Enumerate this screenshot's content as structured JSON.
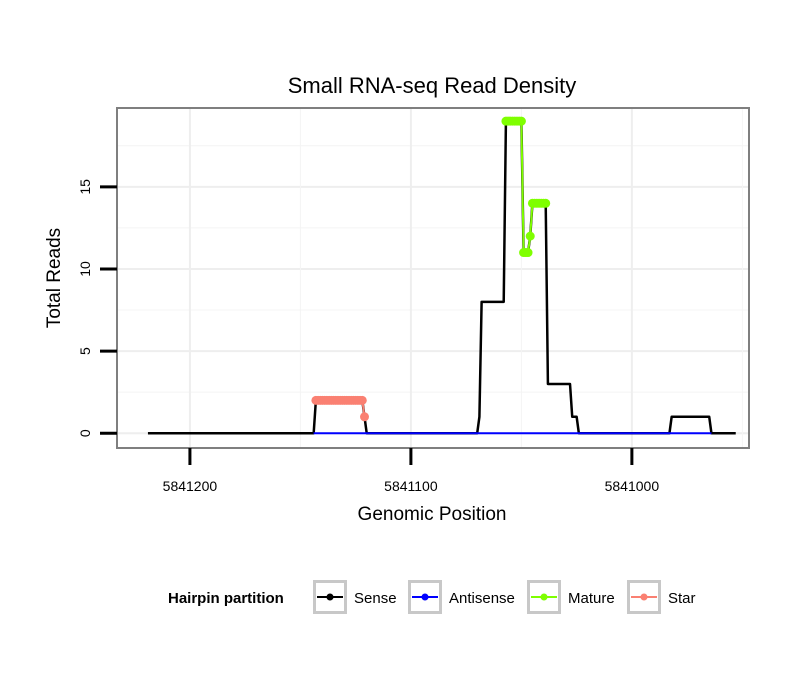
{
  "chart_data": {
    "type": "line",
    "title": "Small RNA-seq Read Density",
    "xlabel": "Genomic Position",
    "ylabel": "Total Reads",
    "x_reversed": true,
    "xlim": [
      5841233,
      5840947
    ],
    "ylim": [
      -0.9,
      19.8
    ],
    "x_ticks": [
      5841200,
      5841100,
      5841000
    ],
    "x_tick_labels": [
      "5841200",
      "5841100",
      "5841000"
    ],
    "y_ticks": [
      0,
      5,
      10,
      15
    ],
    "y_tick_labels": [
      "0",
      "5",
      "10",
      "15"
    ],
    "grid": true,
    "legend": {
      "title": "Hairpin partition",
      "placement": "bottom",
      "entries": [
        {
          "name": "Sense",
          "color": "#000000"
        },
        {
          "name": "Antisense",
          "color": "#0000ff"
        },
        {
          "name": "Mature",
          "color": "#7fff00"
        },
        {
          "name": "Star",
          "color": "#fa8072"
        }
      ]
    },
    "series": [
      {
        "name": "Sense",
        "color": "#000000",
        "points": [
          [
            5841219,
            0
          ],
          [
            5841144,
            0
          ],
          [
            5841143,
            2
          ],
          [
            5841122,
            2
          ],
          [
            5841121,
            1
          ],
          [
            5841120,
            0
          ],
          [
            5841070,
            0
          ],
          [
            5841069,
            1
          ],
          [
            5841068,
            8
          ],
          [
            5841058,
            8
          ],
          [
            5841057,
            19
          ],
          [
            5841050,
            19
          ],
          [
            5841049,
            11
          ],
          [
            5841047,
            11
          ],
          [
            5841046,
            12
          ],
          [
            5841045,
            14
          ],
          [
            5841039,
            14
          ],
          [
            5841038,
            3
          ],
          [
            5841028,
            3
          ],
          [
            5841027,
            1
          ],
          [
            5841025,
            1
          ],
          [
            5841024,
            0
          ],
          [
            5840983,
            0
          ],
          [
            5840982,
            1
          ],
          [
            5840965,
            1
          ],
          [
            5840964,
            0
          ],
          [
            5840953,
            0
          ]
        ]
      },
      {
        "name": "Antisense",
        "color": "#0000ff",
        "points": [
          [
            5841144,
            0
          ],
          [
            5841120,
            0
          ],
          [
            5841070,
            0
          ],
          [
            5841025,
            0
          ],
          [
            5840983,
            0
          ],
          [
            5840964,
            0
          ]
        ]
      },
      {
        "name": "Mature",
        "color": "#7fff00",
        "points": [
          [
            5841057,
            19
          ],
          [
            5841056,
            19
          ],
          [
            5841055,
            19
          ],
          [
            5841054,
            19
          ],
          [
            5841053,
            19
          ],
          [
            5841052,
            19
          ],
          [
            5841051,
            19
          ],
          [
            5841050,
            19
          ],
          [
            5841049,
            11
          ],
          [
            5841048,
            11
          ],
          [
            5841047,
            11
          ],
          [
            5841046,
            12
          ],
          [
            5841045,
            14
          ],
          [
            5841044,
            14
          ],
          [
            5841043,
            14
          ],
          [
            5841042,
            14
          ],
          [
            5841041,
            14
          ],
          [
            5841040,
            14
          ],
          [
            5841039,
            14
          ]
        ]
      },
      {
        "name": "Star",
        "color": "#fa8072",
        "points": [
          [
            5841143,
            2
          ],
          [
            5841142,
            2
          ],
          [
            5841141,
            2
          ],
          [
            5841140,
            2
          ],
          [
            5841139,
            2
          ],
          [
            5841138,
            2
          ],
          [
            5841137,
            2
          ],
          [
            5841136,
            2
          ],
          [
            5841135,
            2
          ],
          [
            5841134,
            2
          ],
          [
            5841133,
            2
          ],
          [
            5841132,
            2
          ],
          [
            5841131,
            2
          ],
          [
            5841130,
            2
          ],
          [
            5841129,
            2
          ],
          [
            5841128,
            2
          ],
          [
            5841127,
            2
          ],
          [
            5841126,
            2
          ],
          [
            5841125,
            2
          ],
          [
            5841124,
            2
          ],
          [
            5841123,
            2
          ],
          [
            5841122,
            2
          ],
          [
            5841121,
            1
          ]
        ]
      }
    ]
  }
}
